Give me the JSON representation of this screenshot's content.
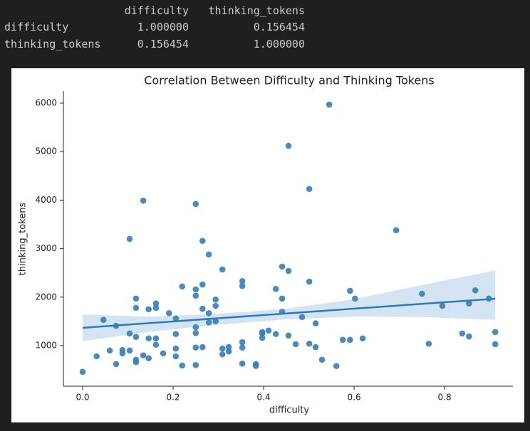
{
  "table": {
    "columns": [
      "difficulty",
      "thinking_tokens"
    ],
    "rows": [
      {
        "label": "difficulty",
        "values": [
          "1.000000",
          "0.156454"
        ]
      },
      {
        "label": "thinking_tokens",
        "values": [
          "0.156454",
          "1.000000"
        ]
      }
    ]
  },
  "chart_data": {
    "type": "scatter",
    "title": "Correlation Between Difficulty and Thinking Tokens",
    "x_label": "difficulty",
    "y_label": "thinking_tokens",
    "color": "#3a7db5",
    "line_color": "#2c7bb6",
    "band_color": "#a9c9e6",
    "xlim": [
      -0.0425,
      0.951
    ],
    "ylim": [
      164,
      6249
    ],
    "xticks": [
      {
        "value": 0,
        "label": "0.0"
      },
      0.2,
      0.4,
      0.6,
      0.8
    ],
    "yticks": [
      1000,
      2000,
      3000,
      4000,
      5000,
      6000
    ],
    "x": [
      0,
      0.031,
      0.046,
      0.06,
      0.074,
      0.074,
      0.088,
      0.088,
      0.104,
      0.104,
      0.104,
      0.118,
      0.118,
      0.118,
      0.118,
      0.118,
      0.134,
      0.134,
      0.146,
      0.146,
      0.146,
      0.162,
      0.162,
      0.162,
      0.162,
      0.178,
      0.191,
      0.206,
      0.206,
      0.206,
      0.206,
      0.22,
      0.22,
      0.25,
      0.25,
      0.25,
      0.25,
      0.25,
      0.25,
      0.25,
      0.265,
      0.265,
      0.265,
      0.265,
      0.279,
      0.279,
      0.279,
      0.294,
      0.294,
      0.294,
      0.309,
      0.309,
      0.309,
      0.323,
      0.323,
      0.353,
      0.353,
      0.353,
      0.353,
      0.353,
      0.383,
      0.383,
      0.397,
      0.397,
      0.397,
      0.411,
      0.427,
      0.427,
      0.441,
      0.441,
      0.441,
      0.455,
      0.455,
      0.455,
      0.471,
      0.485,
      0.501,
      0.501,
      0.501,
      0.515,
      0.515,
      0.529,
      0.545,
      0.561,
      0.575,
      0.591,
      0.591,
      0.602,
      0.619,
      0.693,
      0.75,
      0.765,
      0.795,
      0.839,
      0.854,
      0.854,
      0.868,
      0.898,
      0.912,
      0.912
    ],
    "values": [
      460,
      780,
      1530,
      900,
      1410,
      620,
      910,
      840,
      3200,
      1250,
      900,
      1780,
      1970,
      1180,
      710,
      660,
      3990,
      800,
      1750,
      1150,
      740,
      1870,
      1780,
      1150,
      1020,
      840,
      1670,
      1560,
      1240,
      940,
      780,
      2220,
      590,
      3920,
      2160,
      2030,
      1380,
      1260,
      960,
      600,
      2260,
      3160,
      1760,
      970,
      2880,
      1670,
      1480,
      1950,
      1820,
      1500,
      2570,
      940,
      820,
      970,
      880,
      2330,
      2230,
      1070,
      960,
      630,
      620,
      580,
      1280,
      1250,
      1160,
      1310,
      2170,
      1240,
      2630,
      1970,
      1700,
      5120,
      2540,
      1210,
      1030,
      1590,
      4230,
      2320,
      1040,
      1460,
      970,
      710,
      5970,
      580,
      1120,
      2130,
      1120,
      1970,
      1150,
      3380,
      2070,
      1040,
      1820,
      1250,
      1190,
      1870,
      2140,
      1970,
      1280,
      1030
    ],
    "regression": {
      "x": [
        0,
        0.912
      ],
      "y": [
        1367,
        1968
      ]
    },
    "ci": {
      "x": [
        0,
        0.15,
        0.3,
        0.45,
        0.6,
        0.75,
        0.912
      ],
      "lower": [
        1090,
        1290,
        1430,
        1540,
        1600,
        1590,
        1530
      ],
      "upper": [
        1640,
        1600,
        1660,
        1760,
        1960,
        2250,
        2550
      ]
    }
  }
}
